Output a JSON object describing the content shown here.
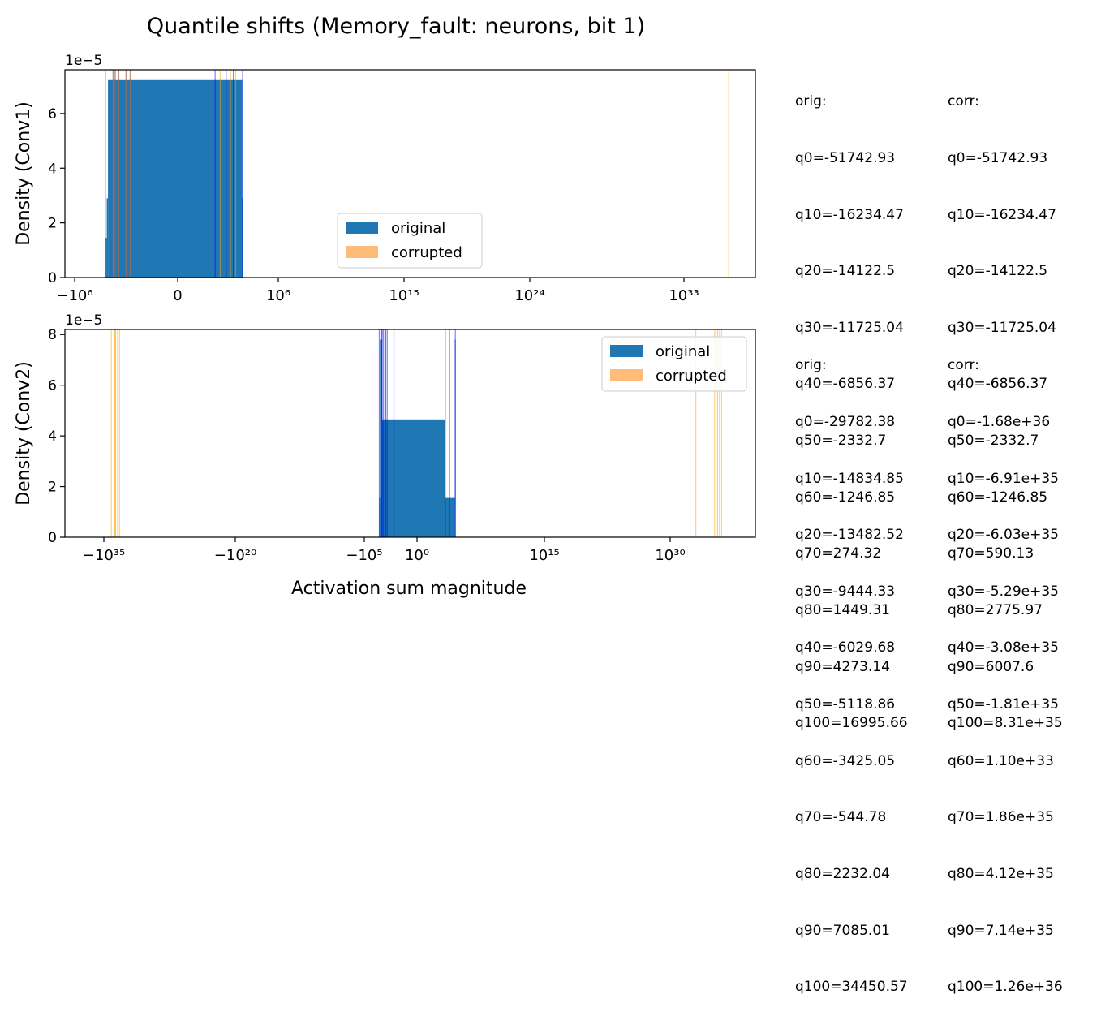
{
  "figure": {
    "title": "Quantile shifts (Memory_fault: neurons, bit 1)",
    "xlabel": "Activation sum magnitude"
  },
  "colors": {
    "original": "#1f77b4",
    "corrupted": "#ffbb78",
    "orig_quantile_lines": "#0000ff",
    "corr_quantile_lines": "#ffa500"
  },
  "chart_data": [
    {
      "type": "bar",
      "subtype": "histogram",
      "xscale": "symlog",
      "ylabel": "Density (Conv1)",
      "yaxis_multiplier": "1e−5",
      "ylim": [
        0,
        7.6
      ],
      "yticks": [
        "0",
        "2",
        "4",
        "6"
      ],
      "xticks": [
        "−10⁶",
        "0",
        "10⁶",
        "10¹⁵",
        "10²⁴",
        "10³³"
      ],
      "grid": false,
      "legend_position": "lower center",
      "series": [
        {
          "name": "original",
          "bins": [
            [
              -51742.93,
              -42000,
              1.45
            ],
            [
              -42000,
              -35000,
              2.9
            ],
            [
              -35000,
              16000,
              7.25
            ],
            [
              16000,
              16995.66,
              2.9
            ]
          ]
        },
        {
          "name": "corrupted",
          "bins": [
            [
              -51742.93,
              8.31e+35,
              0.0
            ]
          ]
        }
      ],
      "legend": [
        "original",
        "corrupted"
      ],
      "orig_quantiles": [
        -51742.93,
        -16234.47,
        -14122.5,
        -11725.04,
        -6856.37,
        -2332.7,
        -1246.85,
        274.32,
        1449.31,
        4273.14,
        16995.66
      ],
      "corr_quantiles": [
        -51742.93,
        -16234.47,
        -14122.5,
        -11725.04,
        -6856.37,
        -2332.7,
        -1246.85,
        590.13,
        2775.97,
        6007.6,
        8.31e+35
      ]
    },
    {
      "type": "bar",
      "subtype": "histogram",
      "xscale": "symlog",
      "ylabel": "Density (Conv2)",
      "yaxis_multiplier": "1e−5",
      "ylim": [
        0,
        8.2
      ],
      "yticks": [
        "0",
        "2",
        "4",
        "6",
        "8"
      ],
      "xticks": [
        "−10³⁵",
        "−10²⁰",
        "−10⁵",
        "10⁰",
        "10¹⁵",
        "10³⁰"
      ],
      "grid": false,
      "legend_position": "upper right",
      "series": [
        {
          "name": "original",
          "bins": [
            [
              -29782.38,
              -25000,
              1.55
            ],
            [
              -25000,
              -14000,
              7.8
            ],
            [
              -14000,
              2000,
              4.65
            ],
            [
              2000,
              30000,
              1.55
            ],
            [
              30000,
              34450.57,
              7.8
            ]
          ]
        },
        {
          "name": "corrupted",
          "bins": [
            [
              -1.68e+36,
              1.26e+36,
              0.0
            ]
          ]
        }
      ],
      "legend": [
        "original",
        "corrupted"
      ],
      "orig_quantiles": [
        -29782.38,
        -14834.85,
        -13482.52,
        -9444.33,
        -6029.68,
        -5118.86,
        -3425.05,
        -544.78,
        2232.04,
        7085.01,
        34450.57
      ],
      "corr_quantiles": [
        -1.68e+36,
        -6.91e+35,
        -6.03e+35,
        -5.29e+35,
        -3.08e+35,
        -1.81e+35,
        1.1e+33,
        1.86e+35,
        4.12e+35,
        7.14e+35,
        1.26e+36
      ]
    }
  ],
  "side_text": [
    {
      "orig": [
        "orig:",
        "q0=-51742.93",
        "q10=-16234.47",
        "q20=-14122.5",
        "q30=-11725.04",
        "q40=-6856.37",
        "q50=-2332.7",
        "q60=-1246.85",
        "q70=274.32",
        "q80=1449.31",
        "q90=4273.14",
        "q100=16995.66"
      ],
      "corr": [
        "corr:",
        "q0=-51742.93",
        "q10=-16234.47",
        "q20=-14122.5",
        "q30=-11725.04",
        "q40=-6856.37",
        "q50=-2332.7",
        "q60=-1246.85",
        "q70=590.13",
        "q80=2775.97",
        "q90=6007.6",
        "q100=8.31e+35"
      ]
    },
    {
      "orig": [
        "orig:",
        "q0=-29782.38",
        "q10=-14834.85",
        "q20=-13482.52",
        "q30=-9444.33",
        "q40=-6029.68",
        "q50=-5118.86",
        "q60=-3425.05",
        "q70=-544.78",
        "q80=2232.04",
        "q90=7085.01",
        "q100=34450.57"
      ],
      "corr": [
        "corr:",
        "q0=-1.68e+36",
        "q10=-6.91e+35",
        "q20=-6.03e+35",
        "q30=-5.29e+35",
        "q40=-3.08e+35",
        "q50=-1.81e+35",
        "q60=1.10e+33",
        "q70=1.86e+35",
        "q80=4.12e+35",
        "q90=7.14e+35",
        "q100=1.26e+36"
      ]
    }
  ]
}
